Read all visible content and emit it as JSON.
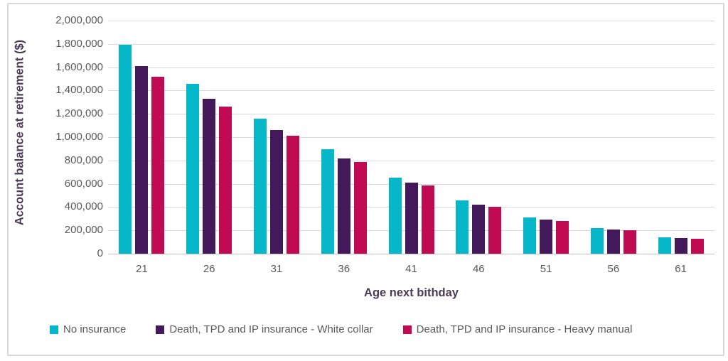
{
  "chart_data": {
    "type": "bar",
    "title": "",
    "categories": [
      "21",
      "26",
      "31",
      "36",
      "41",
      "46",
      "51",
      "56",
      "61"
    ],
    "series": [
      {
        "name": "No insurance",
        "color": "#06b7c9",
        "values": [
          1790000,
          1460000,
          1160000,
          895000,
          655000,
          455000,
          310000,
          222000,
          138000
        ]
      },
      {
        "name": "Death, TPD and IP insurance - White collar",
        "color": "#44195b",
        "values": [
          1610000,
          1330000,
          1060000,
          820000,
          608000,
          420000,
          293000,
          210000,
          133000
        ]
      },
      {
        "name": "Death, TPD and IP insurance - Heavy manual",
        "color": "#c00b53",
        "values": [
          1520000,
          1260000,
          1010000,
          785000,
          585000,
          405000,
          283000,
          203000,
          130000
        ]
      }
    ],
    "xlabel": "Age next bithday",
    "ylabel": "Account balance at retirement ($)",
    "ylim": [
      0,
      2000000
    ],
    "ytick_step": 200000,
    "ytick_labels": [
      "2,000,000",
      "1,800,000",
      "1,600,000",
      "1,400,000",
      "1,200,000",
      "1,000,000",
      "800,000",
      "600,000",
      "400,000",
      "200,000",
      "0"
    ],
    "grid": "horizontal",
    "legend_position": "bottom"
  },
  "colors": {
    "gridline": "#d9d9d9",
    "axis_line": "#bfbfbf",
    "tick_text": "#595959",
    "axis_title_text": "#4a3c58",
    "frame_border": "#d7d7d7",
    "background": "#ffffff"
  }
}
